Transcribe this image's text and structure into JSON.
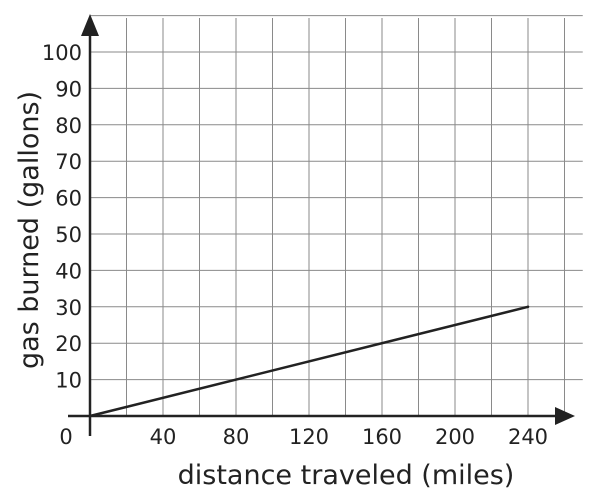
{
  "chart_data": {
    "type": "line",
    "title": "",
    "xlabel": "distance traveled (miles)",
    "ylabel": "gas burned (gallons)",
    "origin_label": "0",
    "xlim": [
      0,
      270
    ],
    "ylim": [
      0,
      110
    ],
    "x_grid_step": 20,
    "y_grid_step": 10,
    "x_ticks": [
      40,
      80,
      120,
      160,
      200,
      240
    ],
    "x_tick_labels": [
      "40",
      "80",
      "120",
      "160",
      "200",
      "240"
    ],
    "y_ticks": [
      10,
      20,
      30,
      40,
      50,
      60,
      70,
      80,
      90,
      100
    ],
    "y_tick_labels": [
      "10",
      "20",
      "30",
      "40",
      "50",
      "60",
      "70",
      "80",
      "90",
      "100"
    ],
    "grid": true,
    "series": [
      {
        "x": [
          0,
          240
        ],
        "y": [
          0,
          30
        ]
      }
    ]
  }
}
